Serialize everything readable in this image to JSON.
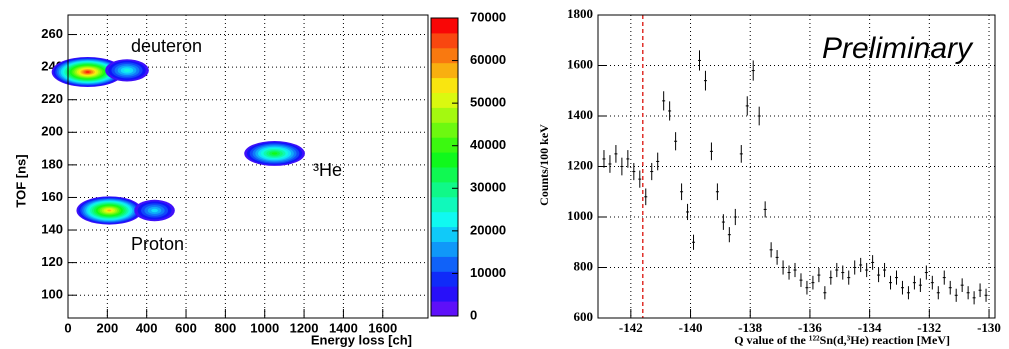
{
  "chart_data": [
    {
      "type": "contour",
      "xlabel": "Energy loss [ch]",
      "ylabel": "TOF [ns]",
      "x": [
        100,
        300,
        1050,
        210,
        440
      ],
      "y": [
        237,
        238,
        187,
        152,
        152
      ],
      "z": [
        70000,
        25000,
        40000,
        60000,
        20000
      ],
      "xlim": [
        0,
        1830
      ],
      "xticks": [
        0,
        200,
        400,
        600,
        800,
        1000,
        1200,
        1400,
        1600
      ],
      "ylim": [
        86,
        272
      ],
      "yticks": [
        100,
        120,
        140,
        160,
        180,
        200,
        220,
        240,
        260
      ],
      "zlim": [
        0,
        70000
      ],
      "zticks": [
        0,
        10000,
        20000,
        30000,
        40000,
        50000,
        60000,
        70000
      ],
      "grid": true,
      "annotations": [
        "deuteron",
        "³He",
        "Proton"
      ]
    },
    {
      "type": "errorbar",
      "xlabel": "Q value of the ¹²²Sn(d,³He) reaction [MeV]",
      "ylabel": "Counts/100 keV",
      "annotation": "Preliminary",
      "marker_x": -141.6,
      "marker_color": "#e0302a",
      "x": [
        -142.9,
        -142.7,
        -142.5,
        -142.3,
        -142.1,
        -141.9,
        -141.7,
        -141.5,
        -141.3,
        -141.1,
        -140.9,
        -140.7,
        -140.5,
        -140.3,
        -140.1,
        -139.9,
        -139.7,
        -139.5,
        -139.3,
        -139.1,
        -138.9,
        -138.7,
        -138.5,
        -138.3,
        -138.1,
        -137.9,
        -137.7,
        -137.5,
        -137.3,
        -137.1,
        -136.9,
        -136.7,
        -136.5,
        -136.3,
        -136.1,
        -135.9,
        -135.7,
        -135.5,
        -135.3,
        -135.1,
        -134.9,
        -134.7,
        -134.5,
        -134.3,
        -134.1,
        -133.9,
        -133.7,
        -133.5,
        -133.3,
        -133.1,
        -132.9,
        -132.7,
        -132.5,
        -132.3,
        -132.1,
        -131.9,
        -131.7,
        -131.5,
        -131.3,
        -131.1,
        -130.9,
        -130.7,
        -130.5,
        -130.3,
        -130.1
      ],
      "values": [
        1230,
        1210,
        1250,
        1200,
        1230,
        1180,
        1150,
        1080,
        1180,
        1220,
        1460,
        1420,
        1300,
        1100,
        1020,
        900,
        1620,
        1540,
        1260,
        1100,
        980,
        930,
        1000,
        1250,
        1440,
        1580,
        1400,
        1030,
        870,
        840,
        800,
        780,
        790,
        750,
        720,
        740,
        770,
        700,
        760,
        790,
        780,
        760,
        800,
        810,
        790,
        820,
        770,
        790,
        740,
        760,
        720,
        700,
        740,
        730,
        780,
        740,
        700,
        760,
        720,
        690,
        730,
        700,
        680,
        710,
        690
      ],
      "errors": [
        35,
        35,
        35,
        35,
        35,
        34,
        34,
        33,
        34,
        35,
        38,
        38,
        36,
        33,
        32,
        30,
        40,
        39,
        35,
        33,
        31,
        30,
        32,
        35,
        38,
        40,
        37,
        32,
        30,
        29,
        28,
        28,
        28,
        27,
        27,
        27,
        28,
        26,
        28,
        28,
        28,
        28,
        28,
        28,
        28,
        29,
        28,
        28,
        27,
        28,
        27,
        26,
        27,
        27,
        28,
        27,
        26,
        28,
        27,
        26,
        27,
        26,
        26,
        27,
        26
      ],
      "xlim": [
        -143.1,
        -129.8
      ],
      "xticks": [
        -142,
        -140,
        -138,
        -136,
        -134,
        -132,
        -130
      ],
      "ylim": [
        600,
        1800
      ],
      "yticks": [
        600,
        800,
        1000,
        1200,
        1400,
        1600,
        1800
      ],
      "grid": true,
      "color": "#000000"
    }
  ]
}
